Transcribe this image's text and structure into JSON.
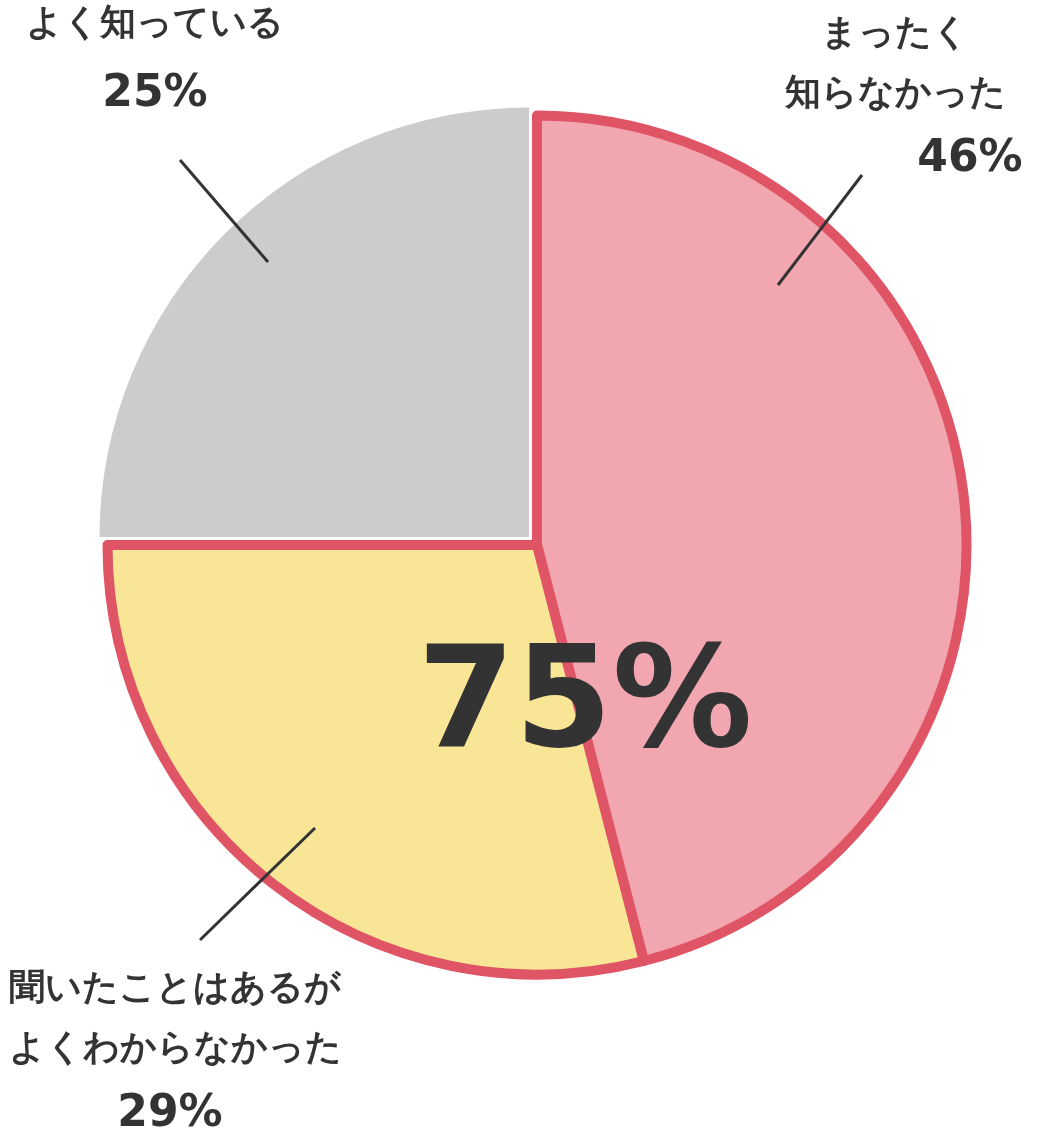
{
  "chart_data": {
    "type": "pie",
    "categories": [
      "まったく知らなかった",
      "聞いたことはあるがよくわからなかった",
      "よく知っている"
    ],
    "values": [
      46,
      29,
      25
    ],
    "colors": [
      "#f2a7b0",
      "#f9e596",
      "#cccccc"
    ],
    "value_labels": [
      "46%",
      "29%",
      "25%"
    ],
    "annotations": [
      "75%"
    ],
    "legend": false
  }
}
